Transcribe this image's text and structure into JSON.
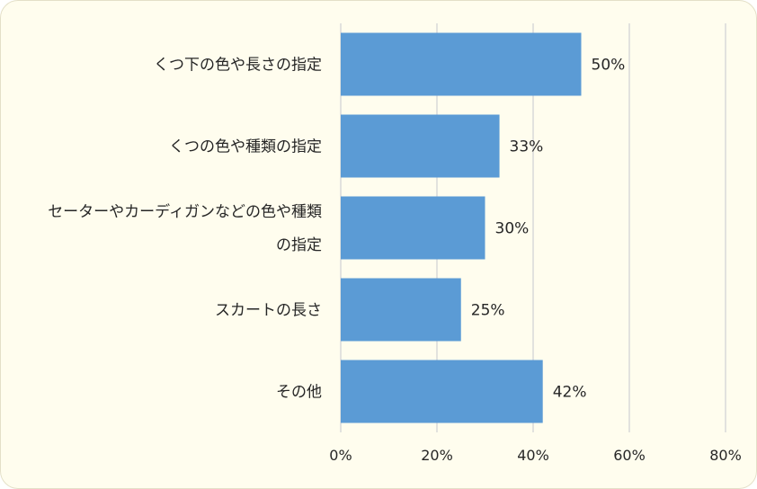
{
  "chart_data": {
    "type": "bar",
    "orientation": "horizontal",
    "categories": [
      [
        "くつ下の色や長さの指定"
      ],
      [
        "くつの色や種類の指定"
      ],
      [
        "セーターやカーディガンなどの色や種類",
        "の指定"
      ],
      [
        "スカートの長さ"
      ],
      [
        "その他"
      ]
    ],
    "values": [
      50,
      33,
      30,
      25,
      42
    ],
    "data_labels": [
      "50%",
      "33%",
      "30%",
      "25%",
      "42%"
    ],
    "xlim": [
      0,
      80
    ],
    "x_ticks": [
      0,
      20,
      40,
      60,
      80
    ],
    "x_tick_labels": [
      "0%",
      "20%",
      "40%",
      "60%",
      "80%"
    ],
    "grid": true,
    "legend": "none",
    "title": "",
    "xlabel": "",
    "ylabel": ""
  },
  "colors": {
    "bar": "#5b9bd5",
    "background": "#fffdee",
    "grid": "#d9d9d9",
    "text": "#262626"
  }
}
